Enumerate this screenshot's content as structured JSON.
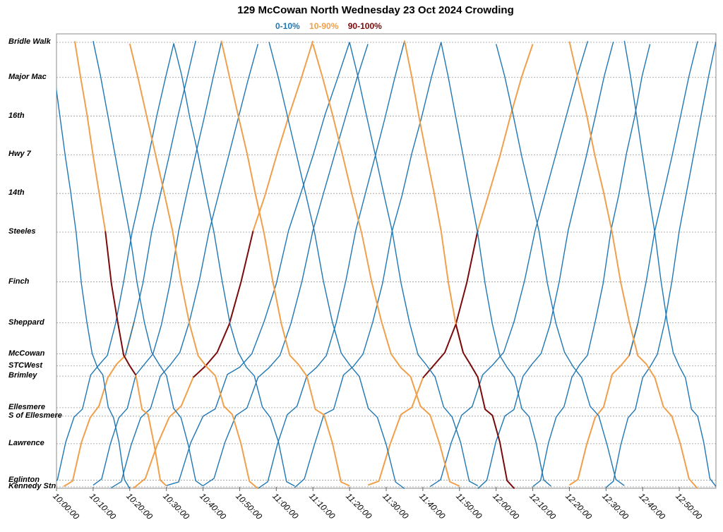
{
  "chart_data": {
    "type": "line",
    "title": "129 McCowan North Wednesday 23 Oct 2024 Crowding",
    "legend": [
      {
        "label": "0-10%",
        "color": "#1f77b4"
      },
      {
        "label": "10-90%",
        "color": "#f0a04b"
      },
      {
        "label": "90-100%",
        "color": "#7b0a0a"
      }
    ],
    "legend_placement": "top-center",
    "xlabel": "",
    "ylabel": "",
    "grid": true,
    "x_range": [
      "10:00:00",
      "13:00:00"
    ],
    "x_ticks": [
      "10:00:00",
      "10:10:00",
      "10:20:00",
      "10:30:00",
      "10:40:00",
      "10:50:00",
      "11:00:00",
      "11:10:00",
      "11:20:00",
      "11:30:00",
      "11:40:00",
      "11:50:00",
      "12:00:00",
      "12:10:00",
      "12:20:00",
      "12:30:00",
      "12:40:00",
      "12:50:00"
    ],
    "stops": [
      {
        "name": "Bridle Walk",
        "pos": 0.0
      },
      {
        "name": "Major Mac",
        "pos": 0.079
      },
      {
        "name": "16th",
        "pos": 0.166
      },
      {
        "name": "Hwy 7",
        "pos": 0.253
      },
      {
        "name": "14th",
        "pos": 0.34
      },
      {
        "name": "Steeles",
        "pos": 0.427
      },
      {
        "name": "Finch",
        "pos": 0.539
      },
      {
        "name": "Sheppard",
        "pos": 0.631
      },
      {
        "name": "McCowan",
        "pos": 0.701
      },
      {
        "name": "STCWest",
        "pos": 0.728
      },
      {
        "name": "Brimley",
        "pos": 0.751
      },
      {
        "name": "Ellesmere",
        "pos": 0.822
      },
      {
        "name": "S of Ellesmere",
        "pos": 0.841
      },
      {
        "name": "Lawrence",
        "pos": 0.903
      },
      {
        "name": "Eglinton",
        "pos": 0.985
      },
      {
        "name": "Kennedy Stn",
        "pos": 1.0
      }
    ],
    "series_note_levels": [
      "0-10%",
      "10-90%",
      "90-100%"
    ],
    "trips": [
      {
        "dir": "north",
        "start": "09:58:00",
        "end": "10:32:00",
        "crowding": [
          "0-10%"
        ]
      },
      {
        "dir": "north",
        "start": "10:02:00",
        "end": "10:38:00",
        "crowding": [
          "10-90%",
          "0-10%"
        ]
      },
      {
        "dir": "north",
        "start": "10:10:00",
        "end": "10:45:00",
        "crowding": [
          "0-10%"
        ]
      },
      {
        "dir": "north",
        "start": "10:15:00",
        "end": "10:55:00",
        "crowding": [
          "0-10%"
        ]
      },
      {
        "dir": "north",
        "start": "10:21:00",
        "end": "11:10:00",
        "crowding": [
          "10-90%",
          "90-100%",
          "10-90%"
        ]
      },
      {
        "dir": "north",
        "start": "10:30:00",
        "end": "11:20:00",
        "crowding": [
          "0-10%"
        ]
      },
      {
        "dir": "north",
        "start": "10:40:00",
        "end": "11:25:00",
        "crowding": [
          "0-10%"
        ]
      },
      {
        "dir": "north",
        "start": "10:55:00",
        "end": "11:35:00",
        "crowding": [
          "0-10%"
        ]
      },
      {
        "dir": "north",
        "start": "11:05:00",
        "end": "11:45:00",
        "crowding": [
          "0-10%"
        ]
      },
      {
        "dir": "north",
        "start": "11:25:00",
        "end": "12:10:00",
        "crowding": [
          "10-90%",
          "90-100%",
          "10-90%"
        ]
      },
      {
        "dir": "north",
        "start": "11:42:00",
        "end": "12:25:00",
        "crowding": [
          "0-10%"
        ]
      },
      {
        "dir": "north",
        "start": "11:55:00",
        "end": "12:32:00",
        "crowding": [
          "0-10%"
        ]
      },
      {
        "dir": "north",
        "start": "12:10:00",
        "end": "12:42:00",
        "crowding": [
          "0-10%"
        ]
      },
      {
        "dir": "north",
        "start": "12:20:00",
        "end": "12:55:00",
        "crowding": [
          "10-90%",
          "0-10%"
        ]
      },
      {
        "dir": "north",
        "start": "12:30:00",
        "end": "13:00:00",
        "crowding": [
          "0-10%"
        ]
      },
      {
        "dir": "south",
        "start": "09:58:00",
        "end": "10:20:00",
        "crowding": [
          "0-10%"
        ]
      },
      {
        "dir": "south",
        "start": "10:05:00",
        "end": "10:30:00",
        "crowding": [
          "10-90%",
          "90-100%",
          "10-90%"
        ]
      },
      {
        "dir": "south",
        "start": "10:10:00",
        "end": "10:40:00",
        "crowding": [
          "0-10%"
        ]
      },
      {
        "dir": "south",
        "start": "10:20:00",
        "end": "10:55:00",
        "crowding": [
          "10-90%"
        ]
      },
      {
        "dir": "south",
        "start": "10:32:00",
        "end": "11:05:00",
        "crowding": [
          "0-10%"
        ]
      },
      {
        "dir": "south",
        "start": "10:45:00",
        "end": "11:20:00",
        "crowding": [
          "10-90%"
        ]
      },
      {
        "dir": "south",
        "start": "10:58:00",
        "end": "11:35:00",
        "crowding": [
          "0-10%"
        ]
      },
      {
        "dir": "south",
        "start": "11:10:00",
        "end": "11:50:00",
        "crowding": [
          "10-90%"
        ]
      },
      {
        "dir": "south",
        "start": "11:20:00",
        "end": "11:55:00",
        "crowding": [
          "0-10%"
        ]
      },
      {
        "dir": "south",
        "start": "11:35:00",
        "end": "12:05:00",
        "crowding": [
          "10-90%",
          "90-100%"
        ]
      },
      {
        "dir": "south",
        "start": "11:45:00",
        "end": "12:15:00",
        "crowding": [
          "0-10%"
        ]
      },
      {
        "dir": "south",
        "start": "12:00:00",
        "end": "12:35:00",
        "crowding": [
          "0-10%"
        ]
      },
      {
        "dir": "south",
        "start": "12:20:00",
        "end": "12:55:00",
        "crowding": [
          "10-90%"
        ]
      },
      {
        "dir": "south",
        "start": "12:35:00",
        "end": "13:00:00",
        "crowding": [
          "0-10%"
        ]
      }
    ]
  }
}
